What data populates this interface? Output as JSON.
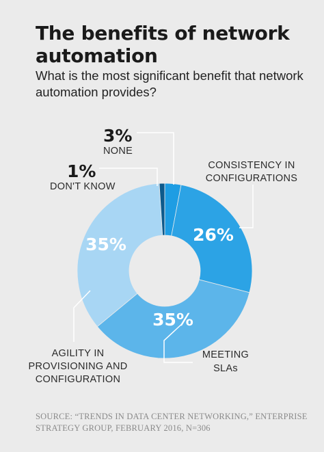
{
  "header": {
    "title": "The benefits of network automation",
    "subtitle": "What is the most significant benefit that network automation provides?"
  },
  "chart_data": {
    "type": "pie",
    "donut": true,
    "categories": [
      "NONE",
      "CONSISTENCY IN CONFIGURATIONS",
      "MEETING SLAs",
      "AGILITY IN PROVISIONING AND CONFIGURATION",
      "DON'T KNOW"
    ],
    "values": [
      3,
      26,
      35,
      35,
      1
    ],
    "value_labels": [
      "3%",
      "26%",
      "35%",
      "35%",
      "1%"
    ],
    "colors": [
      "#1e9de3",
      "#2ca3e5",
      "#5cb5ea",
      "#a8d6f4",
      "#0d5a8c"
    ],
    "legend": "none"
  },
  "source": "SOURCE: “TRENDS IN DATA CENTER NETWORKING,” ENTERPRISE STRATEGY GROUP, FEBRUARY 2016, N=306"
}
